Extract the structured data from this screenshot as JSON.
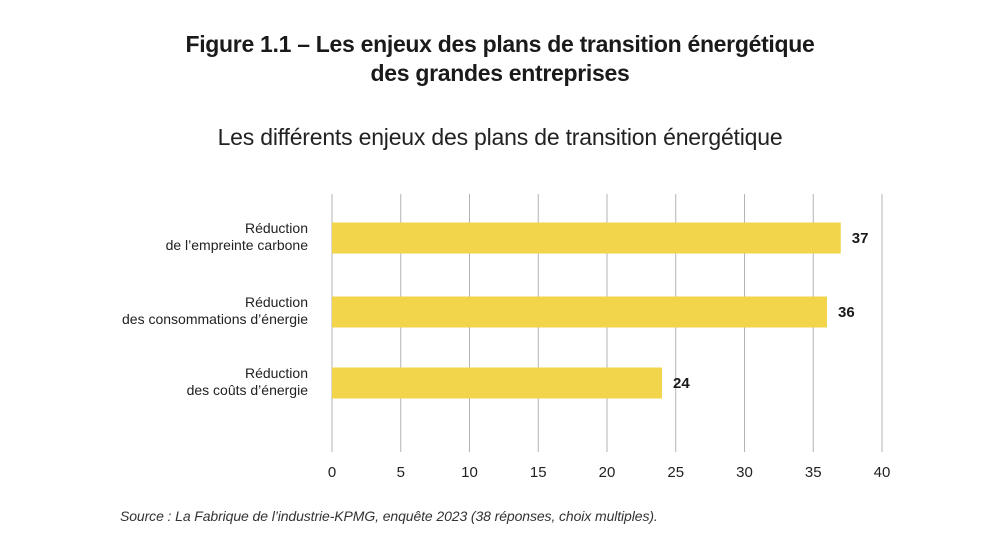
{
  "figure": {
    "title_line1": "Figure 1.1 – Les enjeux des plans de transition énergétique",
    "title_line2": "des grandes entreprises"
  },
  "source": "Source : La Fabrique de l’industrie-KPMG, enquête 2023 (38 réponses, choix multiples).",
  "chart_data": {
    "type": "bar",
    "orientation": "horizontal",
    "title": "Les différents enjeux des plans de transition énergétique",
    "categories": [
      [
        "Réduction",
        "de l’empreinte carbone"
      ],
      [
        "Réduction",
        "des consommations d’énergie"
      ],
      [
        "Réduction",
        "des coûts d’énergie"
      ]
    ],
    "values": [
      37,
      36,
      24
    ],
    "data_labels": [
      "37",
      "36",
      "24"
    ],
    "xlim": [
      0,
      40
    ],
    "ticks": [
      "0",
      "5",
      "10",
      "15",
      "20",
      "25",
      "30",
      "35",
      "40"
    ],
    "tick_values": [
      0,
      5,
      10,
      15,
      20,
      25,
      30,
      35,
      40
    ],
    "grid": "vertical",
    "bar_color": "#f2d54b",
    "grid_color": "#b3b3b3",
    "xlabel": "",
    "ylabel": ""
  }
}
